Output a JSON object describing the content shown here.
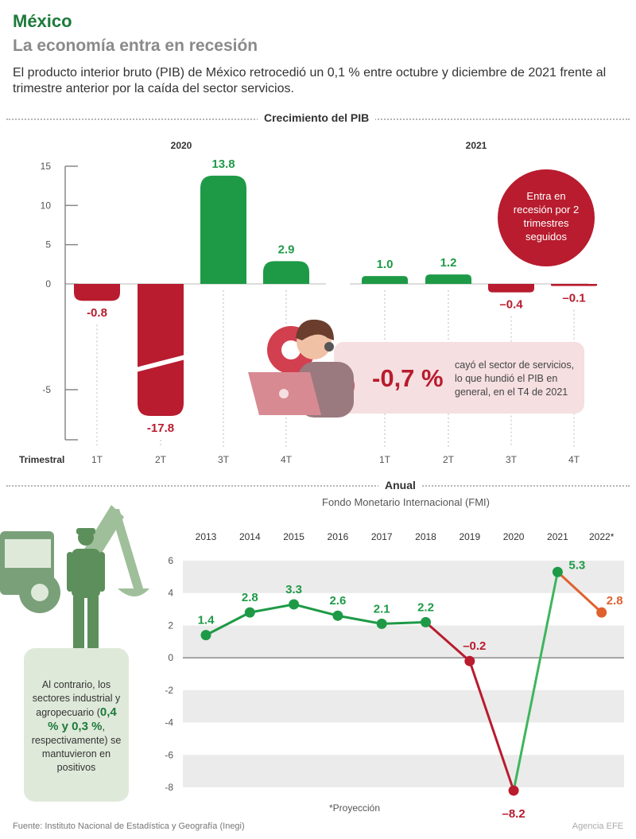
{
  "header": {
    "title": "México",
    "subtitle": "La economía entra en recesión",
    "intro": "El producto interior bruto (PIB) de México retrocedió un 0,1 % entre octubre y diciembre de 2021 frente al trimestre anterior por la caída del sector servicios."
  },
  "footer": {
    "source": "Fuente: Instituto Nacional de Estadística y Geografía (Inegi)",
    "brand": "Agencia EFE"
  },
  "quarterly": {
    "section_title": "Crecimiento del PIB",
    "axis_label": "Trimestral",
    "badge_lines": [
      "Entra en",
      "recesión por 2",
      "trimestres",
      "seguidos"
    ],
    "services": {
      "pct": "-0,7 %",
      "text": "cayó el sector de servicios, lo que hundió el PIB en general, en el T4 de 2021"
    }
  },
  "annual": {
    "section_title": "Anual",
    "subtitle": "Fondo Monetario Internacional (FMI)",
    "footnote": "*Proyección",
    "note": {
      "text_before": "Al contrario, los sectores industrial y agropecuario (",
      "strong": "0,4 % y 0,3 %",
      "text_after": ", respectivamente) se mantuvieron en positivos"
    }
  },
  "colors": {
    "green": "#1e9a47",
    "red": "#b81c2e",
    "orange": "#e0612e",
    "grey_band": "#ebebeb",
    "brand_green": "#1c7a3a"
  },
  "chart_data": [
    {
      "type": "bar",
      "title": "Crecimiento del PIB",
      "xlabel": "Trimestral",
      "ylim": [
        -10,
        15
      ],
      "y_ticks": [
        "15",
        "10",
        "5",
        "0",
        "-5"
      ],
      "groups": [
        {
          "year": "2020",
          "categories": [
            "1T",
            "2T",
            "3T",
            "4T"
          ],
          "values": [
            -0.8,
            -17.8,
            13.8,
            2.9
          ],
          "labels": [
            "-0.8",
            "-17.8",
            "13.8",
            "2.9"
          ]
        },
        {
          "year": "2021",
          "categories": [
            "1T",
            "2T",
            "3T",
            "4T"
          ],
          "values": [
            1.0,
            1.2,
            -0.4,
            -0.1
          ],
          "labels": [
            "1.0",
            "1.2",
            "–0.4",
            "–0.1"
          ]
        }
      ],
      "axis_break": true
    },
    {
      "type": "line",
      "title": "Anual",
      "x": [
        "2013",
        "2014",
        "2015",
        "2016",
        "2017",
        "2018",
        "2019",
        "2020",
        "2021",
        "2022*"
      ],
      "y": [
        1.4,
        2.8,
        3.3,
        2.6,
        2.1,
        2.2,
        -0.2,
        -8.2,
        5.3,
        2.8
      ],
      "labels": [
        "1.4",
        "2.8",
        "3.3",
        "2.6",
        "2.1",
        "2.2",
        "–0.2",
        "–8.2",
        "5.3",
        "2.8"
      ],
      "projection_index": 9,
      "ylim": [
        -8,
        6
      ],
      "y_ticks": [
        "6",
        "4",
        "2",
        "0",
        "-2",
        "-4",
        "-6",
        "-8"
      ]
    }
  ]
}
